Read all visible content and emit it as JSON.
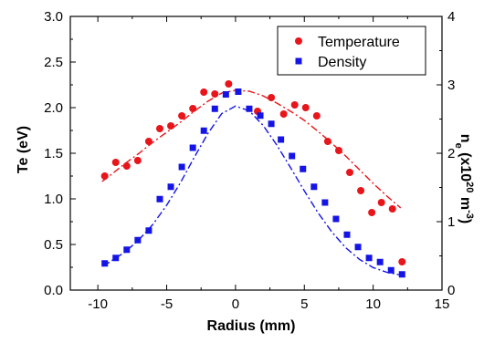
{
  "chart_data": {
    "type": "scatter",
    "xlabel": "Radius (mm)",
    "ylabel_left": "Te (eV)",
    "ylabel_right_parts": [
      "n",
      "e",
      " (x10",
      "20",
      " m",
      "-3",
      ")"
    ],
    "xlim": [
      -12,
      15
    ],
    "ylim_left": [
      0,
      3.0
    ],
    "ylim_right": [
      0,
      4
    ],
    "x_ticks": [
      -10,
      -5,
      0,
      5,
      10,
      15
    ],
    "x_tick_labels": [
      "-10",
      "-5",
      "0",
      "5",
      "10",
      "15"
    ],
    "y_left_ticks": [
      0,
      0.5,
      1.0,
      1.5,
      2.0,
      2.5,
      3.0
    ],
    "y_left_tick_labels": [
      "0.0",
      "0.5",
      "1.0",
      "1.5",
      "2.0",
      "2.5",
      "3.0"
    ],
    "y_right_ticks": [
      0,
      1,
      2,
      3,
      4
    ],
    "y_right_tick_labels": [
      "0",
      "1",
      "2",
      "3",
      "4"
    ],
    "legend_position": "top-right",
    "series": [
      {
        "name": "Temperature",
        "marker": "circle",
        "color": "#e8151b",
        "axis": "left",
        "x": [
          -9.5,
          -8.7,
          -7.9,
          -7.1,
          -6.3,
          -5.5,
          -4.7,
          -3.9,
          -3.1,
          -2.3,
          -1.5,
          -0.5,
          1.6,
          2.6,
          3.5,
          4.3,
          5.1,
          5.9,
          6.7,
          7.5,
          8.3,
          9.1,
          9.9,
          10.6,
          11.4,
          12.1
        ],
        "y": [
          1.25,
          1.4,
          1.36,
          1.42,
          1.63,
          1.77,
          1.8,
          1.91,
          1.99,
          2.17,
          2.15,
          2.26,
          1.96,
          2.11,
          1.93,
          2.03,
          2.0,
          1.91,
          1.63,
          1.53,
          1.29,
          1.09,
          0.85,
          0.96,
          0.89,
          0.31
        ]
      },
      {
        "name": "Density",
        "marker": "square",
        "color": "#1414e6",
        "axis": "right",
        "x": [
          -9.5,
          -8.7,
          -7.9,
          -7.1,
          -6.3,
          -5.5,
          -4.7,
          -3.9,
          -3.1,
          -2.3,
          -1.5,
          -0.7,
          0.2,
          1.0,
          1.8,
          2.6,
          3.3,
          4.1,
          4.9,
          5.7,
          6.5,
          7.3,
          8.1,
          8.9,
          9.7,
          10.5,
          11.3,
          12.1
        ],
        "y": [
          0.39,
          0.47,
          0.59,
          0.73,
          0.87,
          1.33,
          1.51,
          1.8,
          2.08,
          2.33,
          2.65,
          2.86,
          2.9,
          2.65,
          2.55,
          2.43,
          2.2,
          1.96,
          1.77,
          1.51,
          1.28,
          1.04,
          0.81,
          0.63,
          0.47,
          0.41,
          0.29,
          0.23
        ]
      }
    ],
    "fits": [
      {
        "name": "Temperature fit",
        "style": "dash-dot",
        "color": "#e8151b",
        "axis": "left",
        "x": [
          -9.7,
          -9,
          -8,
          -7,
          -6,
          -5,
          -4,
          -3,
          -2,
          -1,
          0,
          1,
          2,
          3,
          4,
          5,
          6,
          7,
          8,
          9,
          10,
          11,
          12
        ],
        "y": [
          1.19,
          1.27,
          1.39,
          1.5,
          1.62,
          1.73,
          1.84,
          1.96,
          2.07,
          2.16,
          2.19,
          2.18,
          2.13,
          2.05,
          1.96,
          1.86,
          1.74,
          1.61,
          1.47,
          1.32,
          1.17,
          1.03,
          0.9
        ]
      },
      {
        "name": "Density fit",
        "style": "dash-dot",
        "color": "#1414e6",
        "axis": "right",
        "x": [
          -9.6,
          -9,
          -8,
          -7,
          -6,
          -5,
          -4,
          -3,
          -2,
          -1,
          0,
          1,
          2,
          3,
          4,
          5,
          6,
          7,
          8,
          9,
          10,
          11,
          12
        ],
        "y": [
          0.35,
          0.43,
          0.56,
          0.74,
          0.96,
          1.24,
          1.57,
          1.94,
          2.29,
          2.58,
          2.69,
          2.62,
          2.41,
          2.12,
          1.79,
          1.45,
          1.13,
          0.85,
          0.62,
          0.45,
          0.33,
          0.26,
          0.22
        ]
      }
    ]
  }
}
